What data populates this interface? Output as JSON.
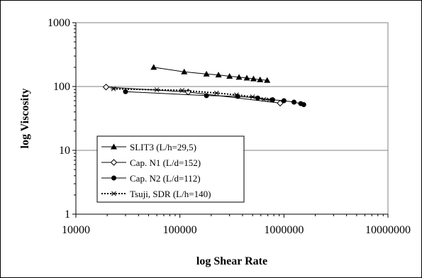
{
  "chart_data": {
    "type": "scatter",
    "xlabel": "log Shear Rate",
    "ylabel": "log Viscosity",
    "x_scale": "log",
    "y_scale": "log",
    "xlim": [
      10000,
      10000000
    ],
    "ylim": [
      1,
      1000
    ],
    "x_ticks": [
      "10000",
      "100000",
      "1000000",
      "10000000"
    ],
    "y_ticks": [
      "1",
      "10",
      "100",
      "1000"
    ],
    "grid": "horizontal major",
    "legend_position": "bottom-left",
    "series": [
      {
        "name": "SLIT3 (L/h=29,5)",
        "marker": "triangle",
        "line": "solid",
        "x": [
          56000,
          110000,
          180000,
          235000,
          300000,
          370000,
          440000,
          510000,
          590000,
          690000
        ],
        "y": [
          200,
          170,
          157,
          152,
          145,
          140,
          136,
          132,
          128,
          125
        ]
      },
      {
        "name": "Cap. N1 (L/d=152)",
        "marker": "diamond-open",
        "line": "solid",
        "x": [
          19500,
          120000,
          920000
        ],
        "y": [
          98,
          82,
          55
        ]
      },
      {
        "name": "Cap. N2 (L/d=112)",
        "marker": "circle",
        "line": "solid",
        "x": [
          30000,
          180000,
          360000,
          560000,
          780000,
          1000000,
          1250000,
          1450000,
          1550000
        ],
        "y": [
          83,
          72,
          70,
          66,
          62,
          60,
          57,
          54,
          52
        ]
      },
      {
        "name": "Tsuji, SDR (L/h=140)",
        "marker": "asterisk",
        "line": "dotted",
        "x": [
          23000,
          60000,
          105000,
          225000,
          350000,
          500000,
          640000,
          720000
        ],
        "y": [
          92,
          89,
          87,
          79,
          74,
          69,
          63,
          62
        ]
      }
    ]
  }
}
